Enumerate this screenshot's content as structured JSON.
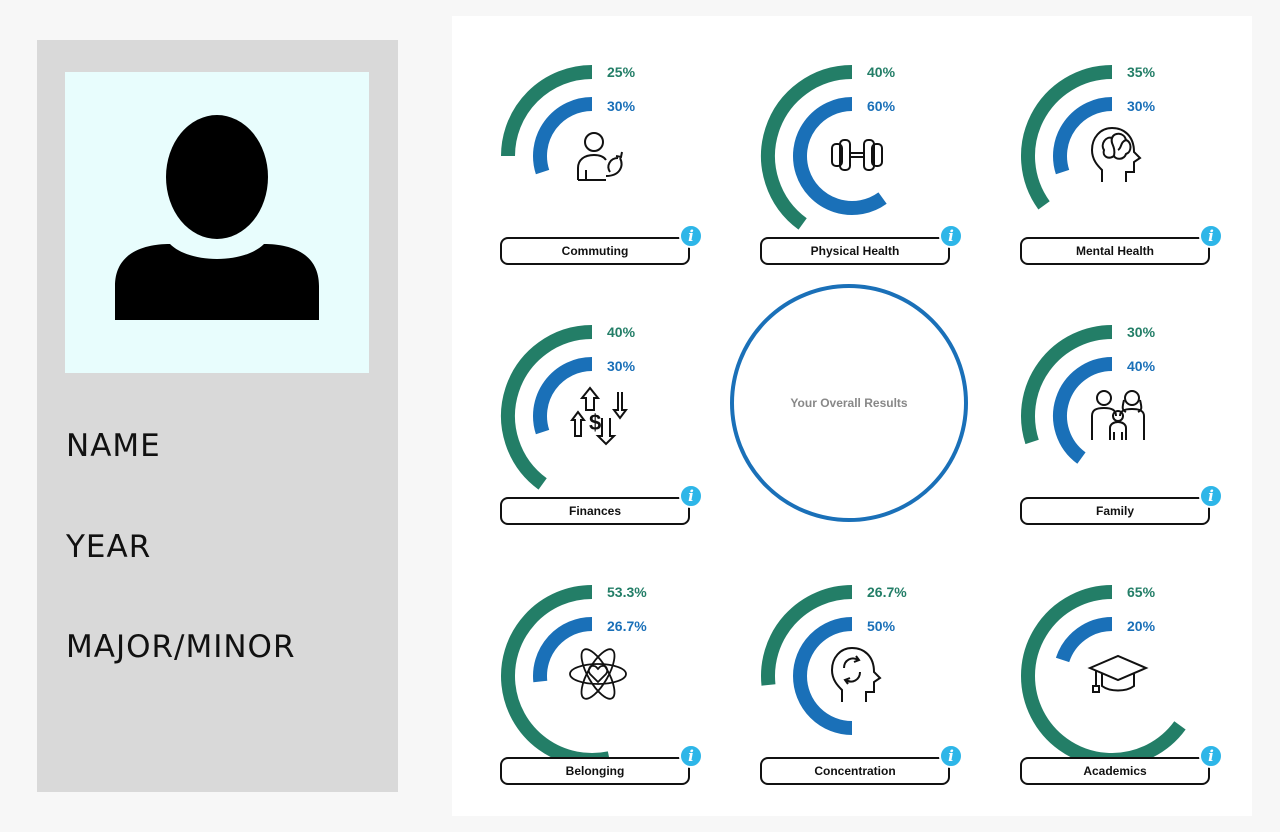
{
  "profile": {
    "avatar_icon": "user-silhouette-icon",
    "fields": [
      "NAME",
      "YEAR",
      "MAJOR/MINOR"
    ]
  },
  "colors": {
    "outer": "#237e67",
    "inner": "#1a70b8",
    "info": "#2eb6e8"
  },
  "overall": {
    "label": "Your Overall Results"
  },
  "categories": [
    {
      "label": "Commuting",
      "outer_pct": "25%",
      "inner_pct": "30%",
      "outer": 0.25,
      "inner": 0.3,
      "icon": "commuter-icon"
    },
    {
      "label": "Physical Health",
      "outer_pct": "40%",
      "inner_pct": "60%",
      "outer": 0.4,
      "inner": 0.6,
      "icon": "dumbbell-icon"
    },
    {
      "label": "Mental Health",
      "outer_pct": "35%",
      "inner_pct": "30%",
      "outer": 0.35,
      "inner": 0.3,
      "icon": "brain-head-icon"
    },
    {
      "label": "Finances",
      "outer_pct": "40%",
      "inner_pct": "30%",
      "outer": 0.4,
      "inner": 0.3,
      "icon": "money-flow-icon"
    },
    {
      "label": "Family",
      "outer_pct": "30%",
      "inner_pct": "40%",
      "outer": 0.3,
      "inner": 0.4,
      "icon": "family-icon"
    },
    {
      "label": "Belonging",
      "outer_pct": "53.3%",
      "inner_pct": "26.7%",
      "outer": 0.533,
      "inner": 0.267,
      "icon": "atom-heart-icon"
    },
    {
      "label": "Concentration",
      "outer_pct": "26.7%",
      "inner_pct": "50%",
      "outer": 0.267,
      "inner": 0.5,
      "icon": "head-refresh-icon"
    },
    {
      "label": "Academics",
      "outer_pct": "65%",
      "inner_pct": "20%",
      "outer": 0.65,
      "inner": 0.2,
      "icon": "graduation-cap-icon"
    }
  ],
  "info_glyph": "i"
}
